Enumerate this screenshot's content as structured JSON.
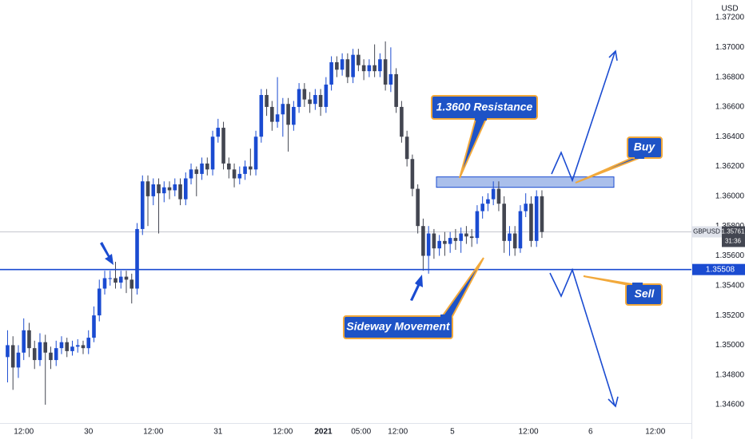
{
  "chart_data": {
    "type": "candlestick",
    "symbol": "GBPUSD",
    "currency": "USD",
    "last_price": 1.35761,
    "countdown": "31:36",
    "support_level": 1.35508,
    "resistance_zone": [
      1.3606,
      1.3613
    ],
    "annotations": [
      "1.3600 Resistance",
      "Buy",
      "Sell",
      "Sideway Movement"
    ],
    "up_color": "#1a4bd1",
    "down_color": "#434651",
    "support_color": "#1a4bd1",
    "grid": false,
    "xlim": [
      -4.4,
      123.7
    ],
    "ylim": [
      1.34477,
      1.37318
    ],
    "xticks": [
      {
        "value": 0,
        "label": "12:00"
      },
      {
        "value": 12,
        "label": "30"
      },
      {
        "value": 24,
        "label": "12:00"
      },
      {
        "value": 36,
        "label": "31"
      },
      {
        "value": 48,
        "label": "12:00"
      },
      {
        "value": 55.5,
        "label": "2021"
      },
      {
        "value": 62.5,
        "label": "05:00"
      },
      {
        "value": 69.3,
        "label": "12:00"
      },
      {
        "value": 79.4,
        "label": "5"
      },
      {
        "value": 93.5,
        "label": "12:00"
      },
      {
        "value": 105,
        "label": "6"
      },
      {
        "value": 117,
        "label": "12:00"
      }
    ],
    "yticks": [
      {
        "value": 1.372,
        "label": "1.37200"
      },
      {
        "value": 1.37,
        "label": "1.37000"
      },
      {
        "value": 1.368,
        "label": "1.36800"
      },
      {
        "value": 1.366,
        "label": "1.36600"
      },
      {
        "value": 1.364,
        "label": "1.36400"
      },
      {
        "value": 1.362,
        "label": "1.36200"
      },
      {
        "value": 1.36,
        "label": "1.36000"
      },
      {
        "value": 1.358,
        "label": "1.35800"
      },
      {
        "value": 1.356,
        "label": "1.35600"
      },
      {
        "value": 1.354,
        "label": "1.35400"
      },
      {
        "value": 1.352,
        "label": "1.35200"
      },
      {
        "value": 1.35,
        "label": "1.35000"
      },
      {
        "value": 1.348,
        "label": "1.34800"
      },
      {
        "value": 1.346,
        "label": "1.34600"
      }
    ],
    "x": [
      -3,
      -2,
      -1,
      0,
      1,
      2,
      3,
      4,
      5,
      6,
      7,
      8,
      9,
      10,
      11,
      12,
      13,
      14,
      15,
      16,
      17,
      18,
      19,
      20,
      21,
      22,
      23,
      24,
      25,
      26,
      27,
      28,
      29,
      30,
      31,
      32,
      33,
      34,
      35,
      36,
      37,
      38,
      39,
      40,
      41,
      42,
      43,
      44,
      45,
      46,
      47,
      48,
      49,
      50,
      51,
      52,
      53,
      54,
      55,
      56,
      57,
      58,
      59,
      60,
      61,
      62,
      63,
      64,
      65,
      66,
      67,
      68,
      69,
      70,
      71,
      72,
      73,
      74,
      75,
      76,
      77,
      78,
      79,
      80,
      81,
      82,
      83,
      84,
      85,
      86,
      87,
      88,
      89,
      90,
      91,
      92,
      93,
      94,
      95,
      96
    ],
    "open": [
      1.3492,
      1.35,
      1.3485,
      1.3495,
      1.351,
      1.3498,
      1.349,
      1.3502,
      1.3495,
      1.349,
      1.3498,
      1.3502,
      1.3496,
      1.3499,
      1.35,
      1.3498,
      1.3505,
      1.352,
      1.3538,
      1.3545,
      1.3545,
      1.3542,
      1.3546,
      1.3544,
      1.3538,
      1.3578,
      1.361,
      1.36,
      1.3608,
      1.3602,
      1.3606,
      1.3604,
      1.3608,
      1.3598,
      1.3612,
      1.3618,
      1.3615,
      1.3622,
      1.3618,
      1.364,
      1.3646,
      1.3622,
      1.3618,
      1.3612,
      1.3615,
      1.362,
      1.3618,
      1.364,
      1.3668,
      1.366,
      1.365,
      1.3655,
      1.3662,
      1.3648,
      1.366,
      1.3672,
      1.3665,
      1.3662,
      1.3668,
      1.366,
      1.3675,
      1.369,
      1.3685,
      1.3692,
      1.368,
      1.3695,
      1.3688,
      1.3684,
      1.3688,
      1.3684,
      1.3692,
      1.3675,
      1.3682,
      1.366,
      1.364,
      1.3625,
      1.3605,
      1.358,
      1.356,
      1.3575,
      1.3565,
      1.357,
      1.3568,
      1.3572,
      1.357,
      1.3575,
      1.3573,
      1.3572,
      1.359,
      1.3595,
      1.3598,
      1.3605,
      1.3595,
      1.357,
      1.3575,
      1.3565,
      1.359,
      1.3595,
      1.357,
      1.36
    ],
    "high": [
      1.351,
      1.3506,
      1.35,
      1.3518,
      1.3515,
      1.3503,
      1.3508,
      1.3507,
      1.3499,
      1.3503,
      1.3506,
      1.3505,
      1.3503,
      1.3504,
      1.3503,
      1.351,
      1.3526,
      1.3544,
      1.355,
      1.355,
      1.3556,
      1.355,
      1.355,
      1.3548,
      1.3582,
      1.3614,
      1.3614,
      1.3612,
      1.3612,
      1.361,
      1.361,
      1.3612,
      1.3612,
      1.3616,
      1.3622,
      1.362,
      1.3626,
      1.3626,
      1.3644,
      1.3652,
      1.365,
      1.3626,
      1.3622,
      1.362,
      1.3624,
      1.3632,
      1.3644,
      1.3672,
      1.3672,
      1.3664,
      1.368,
      1.3666,
      1.3666,
      1.3664,
      1.3676,
      1.3676,
      1.367,
      1.3672,
      1.3672,
      1.368,
      1.3694,
      1.3694,
      1.3696,
      1.3696,
      1.3699,
      1.3699,
      1.3692,
      1.3692,
      1.3702,
      1.3696,
      1.3704,
      1.37,
      1.3686,
      1.3664,
      1.3644,
      1.3628,
      1.3608,
      1.3585,
      1.358,
      1.3578,
      1.3574,
      1.3576,
      1.3576,
      1.3578,
      1.3579,
      1.358,
      1.3578,
      1.3594,
      1.36,
      1.3602,
      1.361,
      1.361,
      1.36,
      1.358,
      1.358,
      1.3594,
      1.3602,
      1.36,
      1.3604,
      1.3604
    ],
    "low": [
      1.3475,
      1.347,
      1.3478,
      1.349,
      1.3492,
      1.3484,
      1.3486,
      1.346,
      1.3484,
      1.3486,
      1.3494,
      1.3492,
      1.3493,
      1.3495,
      1.3494,
      1.3494,
      1.3502,
      1.3516,
      1.3534,
      1.354,
      1.3538,
      1.3538,
      1.3535,
      1.3528,
      1.3534,
      1.3574,
      1.358,
      1.3594,
      1.3575,
      1.3596,
      1.3598,
      1.36,
      1.3594,
      1.3594,
      1.3608,
      1.36,
      1.3611,
      1.3614,
      1.3614,
      1.3636,
      1.3618,
      1.3612,
      1.3606,
      1.3608,
      1.3611,
      1.3614,
      1.3614,
      1.3636,
      1.3654,
      1.3644,
      1.3646,
      1.364,
      1.363,
      1.3644,
      1.3656,
      1.366,
      1.3656,
      1.3658,
      1.3654,
      1.3656,
      1.3671,
      1.368,
      1.3681,
      1.3676,
      1.3676,
      1.3684,
      1.3678,
      1.368,
      1.368,
      1.368,
      1.3671,
      1.367,
      1.3656,
      1.3636,
      1.362,
      1.36,
      1.3575,
      1.355,
      1.3548,
      1.3558,
      1.356,
      1.356,
      1.3562,
      1.3564,
      1.3562,
      1.3568,
      1.3566,
      1.3568,
      1.3585,
      1.359,
      1.3594,
      1.359,
      1.3562,
      1.356,
      1.356,
      1.3562,
      1.3586,
      1.3566,
      1.3566,
      1.3572
    ],
    "close": [
      1.35,
      1.3485,
      1.3495,
      1.351,
      1.3498,
      1.349,
      1.3502,
      1.3495,
      1.349,
      1.3498,
      1.3502,
      1.3496,
      1.3499,
      1.35,
      1.3498,
      1.3505,
      1.352,
      1.3538,
      1.3545,
      1.3545,
      1.3542,
      1.3546,
      1.3544,
      1.3538,
      1.3578,
      1.361,
      1.36,
      1.3608,
      1.3602,
      1.3606,
      1.3604,
      1.3608,
      1.3598,
      1.3612,
      1.3618,
      1.3615,
      1.3622,
      1.3618,
      1.364,
      1.3646,
      1.3622,
      1.3618,
      1.3612,
      1.3615,
      1.362,
      1.3618,
      1.364,
      1.3668,
      1.366,
      1.365,
      1.3655,
      1.3662,
      1.3648,
      1.366,
      1.3672,
      1.3665,
      1.3662,
      1.3668,
      1.366,
      1.3675,
      1.369,
      1.3685,
      1.3692,
      1.368,
      1.3695,
      1.3688,
      1.3684,
      1.3688,
      1.3684,
      1.3692,
      1.3675,
      1.3682,
      1.366,
      1.364,
      1.3625,
      1.3605,
      1.358,
      1.356,
      1.3575,
      1.3565,
      1.357,
      1.3568,
      1.3572,
      1.357,
      1.3575,
      1.3573,
      1.3572,
      1.359,
      1.3595,
      1.3598,
      1.3605,
      1.3595,
      1.357,
      1.3575,
      1.3565,
      1.359,
      1.3595,
      1.357,
      1.36,
      1.3576
    ]
  }
}
